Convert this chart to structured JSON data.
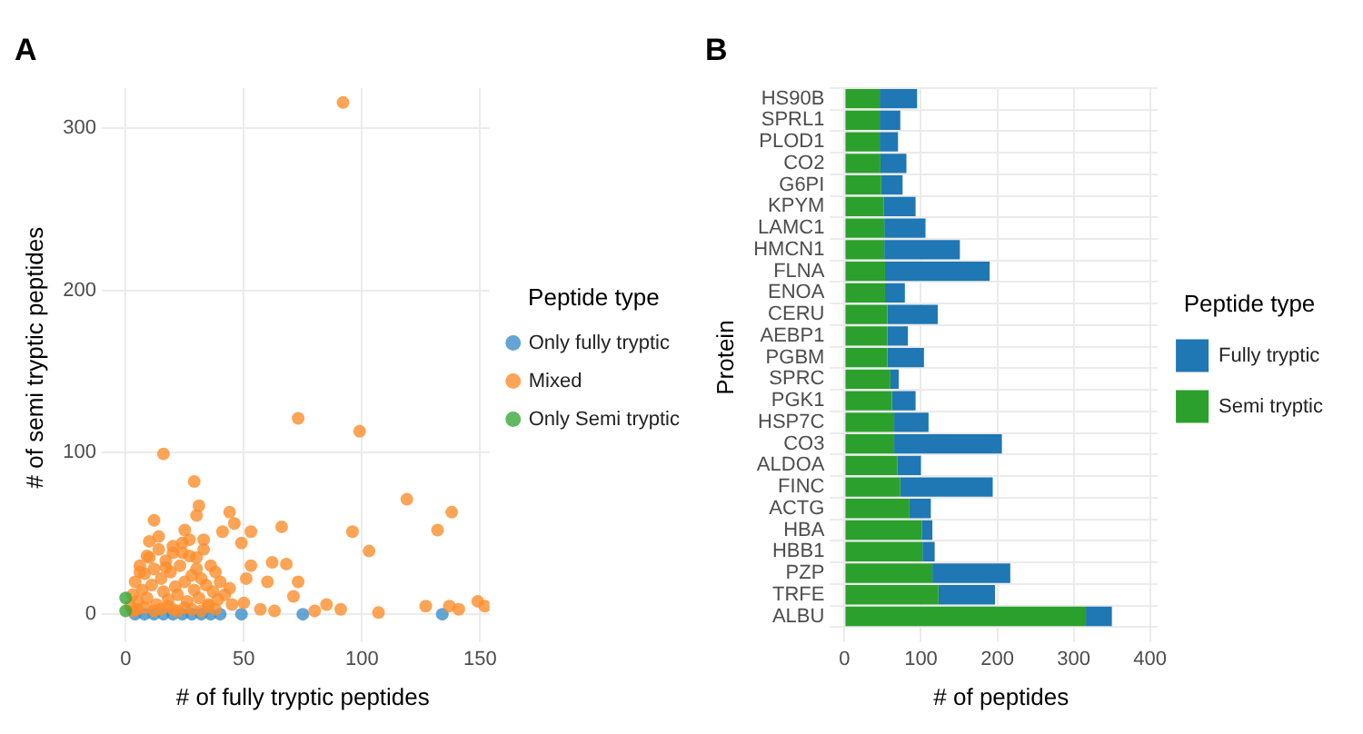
{
  "chart_data": [
    {
      "type": "scatter",
      "title": "A",
      "xlabel": "# of fully tryptic peptides",
      "ylabel": "# of semi tryptic peptides",
      "legend_title": "Peptide type",
      "legend": "right",
      "grid": true,
      "marker": "circle",
      "xlim": [
        -4,
        154
      ],
      "ylim": [
        -8,
        325
      ],
      "xticks": [
        0,
        50,
        100,
        150
      ],
      "yticks": [
        0,
        100,
        200,
        300
      ],
      "series": [
        {
          "name": "Only fully tryptic",
          "color": "#3d8fc9",
          "x": [
            4,
            8,
            12,
            16,
            20,
            24,
            28,
            32,
            36,
            40,
            49,
            75,
            134
          ],
          "values": [
            0,
            0,
            0,
            0,
            0,
            0,
            0,
            0,
            0,
            0,
            0,
            0,
            0
          ]
        },
        {
          "name": "Mixed",
          "color": "#fd8d2c",
          "x": [
            92,
            73,
            99,
            16,
            29,
            119,
            138,
            132,
            96,
            103,
            66,
            53,
            49,
            44,
            46,
            41,
            12,
            31,
            30,
            25,
            27,
            33,
            62,
            68,
            60,
            73,
            53,
            51,
            71,
            85,
            91,
            107,
            127,
            137,
            141,
            149,
            152,
            80,
            63,
            57,
            50,
            2,
            3,
            4,
            5,
            6,
            7,
            8,
            9,
            10,
            11,
            12,
            13,
            14,
            15,
            16,
            17,
            18,
            19,
            20,
            21,
            22,
            23,
            24,
            25,
            26,
            27,
            28,
            29,
            30,
            31,
            32,
            33,
            34,
            35,
            36,
            37,
            38,
            39,
            40,
            42,
            44,
            45,
            3,
            5,
            8,
            12,
            15,
            18,
            20,
            22,
            25,
            28,
            32,
            35,
            38,
            10,
            14,
            20,
            24,
            30,
            6,
            9,
            17
          ],
          "values": [
            316,
            121,
            113,
            99,
            82,
            71,
            63,
            52,
            51,
            39,
            54,
            51,
            44,
            63,
            56,
            51,
            58,
            67,
            61,
            52,
            46,
            46,
            32,
            31,
            20,
            20,
            30,
            22,
            11,
            6,
            3,
            1,
            5,
            5,
            3,
            8,
            5,
            2,
            2,
            3,
            7,
            5,
            12,
            20,
            8,
            30,
            15,
            25,
            10,
            35,
            18,
            28,
            6,
            40,
            22,
            14,
            33,
            9,
            26,
            38,
            17,
            12,
            30,
            44,
            20,
            8,
            36,
            24,
            15,
            28,
            10,
            22,
            40,
            18,
            6,
            30,
            14,
            26,
            9,
            20,
            12,
            16,
            6,
            2,
            3,
            4,
            2,
            3,
            5,
            3,
            2,
            4,
            3,
            2,
            5,
            3,
            45,
            48,
            42,
            38,
            35,
            26,
            36,
            29
          ]
        },
        {
          "name": "Only Semi tryptic",
          "color": "#3aa83a",
          "x": [
            0,
            0
          ],
          "values": [
            2,
            10
          ]
        }
      ]
    },
    {
      "type": "bar",
      "title": "B",
      "xlabel": "# of peptides",
      "ylabel": "Protein",
      "legend_title": "Peptide type",
      "legend": "right",
      "grid": true,
      "orientation": "horizontal",
      "stacked": true,
      "xlim": [
        0,
        410
      ],
      "xticks": [
        0,
        100,
        200,
        300,
        400
      ],
      "categories": [
        "HS90B",
        "SPRL1",
        "PLOD1",
        "CO2",
        "G6PI",
        "KPYM",
        "LAMC1",
        "HMCN1",
        "FLNA",
        "ENOA",
        "CERU",
        "AEBP1",
        "PGBM",
        "SPRC",
        "PGK1",
        "HSP7C",
        "CO3",
        "ALDOA",
        "FINC",
        "ACTG",
        "HBA",
        "HBB1",
        "PZP",
        "TRFE",
        "ALBU"
      ],
      "series": [
        {
          "name": "Semi tryptic",
          "color": "#2ca02c",
          "values": [
            46,
            46,
            46,
            47,
            48,
            51,
            52,
            52,
            53,
            53,
            56,
            56,
            56,
            60,
            62,
            65,
            65,
            69,
            73,
            85,
            101,
            102,
            115,
            123,
            316
          ]
        },
        {
          "name": "Fully tryptic",
          "color": "#1f77b4",
          "values": [
            49,
            27,
            24,
            34,
            28,
            42,
            54,
            99,
            137,
            26,
            66,
            27,
            48,
            11,
            31,
            45,
            141,
            31,
            121,
            28,
            14,
            16,
            102,
            74,
            34
          ]
        }
      ]
    }
  ]
}
